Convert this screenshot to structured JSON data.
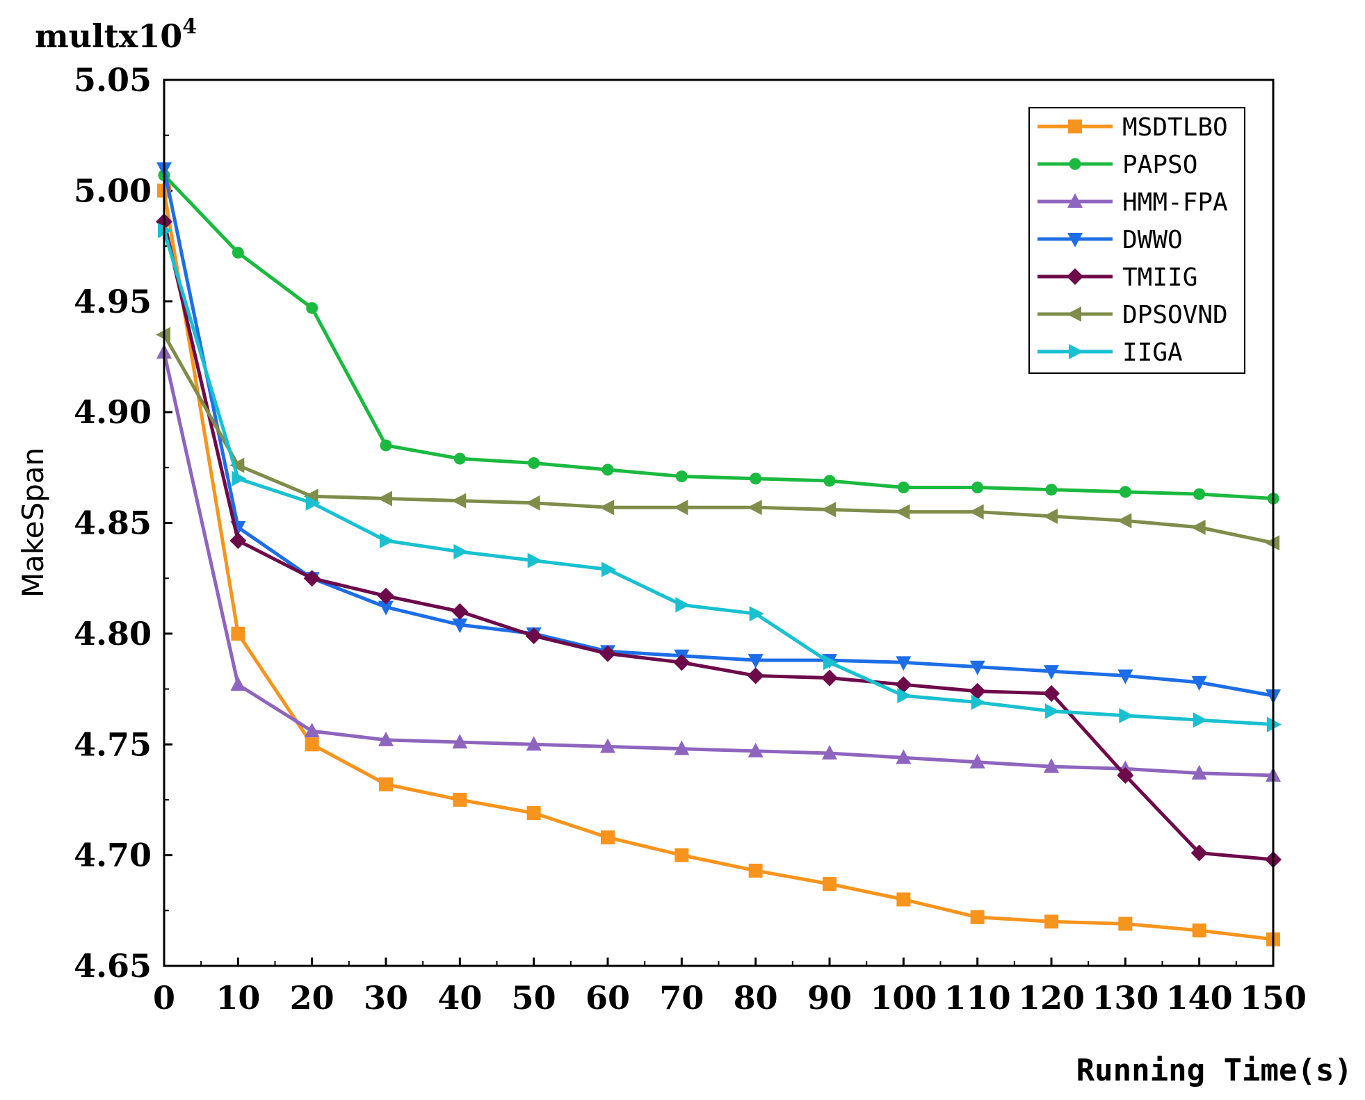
{
  "chart_data": {
    "type": "line",
    "title": "",
    "xlabel": "Running Time(s)",
    "ylabel": "MakeSpan",
    "multiplier_base": "multx10",
    "multiplier_exp": "4",
    "x": [
      0,
      10,
      20,
      30,
      40,
      50,
      60,
      70,
      80,
      90,
      100,
      110,
      120,
      130,
      140,
      150
    ],
    "x_ticks": [
      0,
      10,
      20,
      30,
      40,
      50,
      60,
      70,
      80,
      90,
      100,
      110,
      120,
      130,
      140,
      150
    ],
    "xlim": [
      0,
      150
    ],
    "ylim": [
      4.65,
      5.05
    ],
    "y_ticks": [
      4.65,
      4.7,
      4.75,
      4.8,
      4.85,
      4.9,
      4.95,
      5.0,
      5.05
    ],
    "y_tick_labels": [
      "4.65",
      "4.70",
      "4.75",
      "4.80",
      "4.85",
      "4.90",
      "4.95",
      "5.00",
      "5.05"
    ],
    "grid": false,
    "legend_position": "top-right",
    "series": [
      {
        "name": "MSDTLBO",
        "color": "#f7941d",
        "marker": "square",
        "values": [
          5.0,
          4.8,
          4.75,
          4.732,
          4.725,
          4.719,
          4.708,
          4.7,
          4.693,
          4.687,
          4.68,
          4.672,
          4.67,
          4.669,
          4.666,
          4.662
        ]
      },
      {
        "name": "PAPSO",
        "color": "#1ab93f",
        "marker": "circle",
        "values": [
          5.007,
          4.972,
          4.947,
          4.885,
          4.879,
          4.877,
          4.874,
          4.871,
          4.87,
          4.869,
          4.866,
          4.866,
          4.865,
          4.864,
          4.863,
          4.861
        ]
      },
      {
        "name": "HMM-FPA",
        "color": "#8e65be",
        "marker": "triangle-up",
        "values": [
          4.927,
          4.777,
          4.756,
          4.752,
          4.751,
          4.75,
          4.749,
          4.748,
          4.747,
          4.746,
          4.744,
          4.742,
          4.74,
          4.739,
          4.737,
          4.736
        ]
      },
      {
        "name": "DWWO",
        "color": "#1d6ee6",
        "marker": "triangle-down",
        "values": [
          5.01,
          4.848,
          4.825,
          4.812,
          4.804,
          4.8,
          4.792,
          4.79,
          4.788,
          4.788,
          4.787,
          4.785,
          4.783,
          4.781,
          4.778,
          4.772
        ]
      },
      {
        "name": "TMIIG",
        "color": "#6d0a4a",
        "marker": "diamond",
        "values": [
          4.986,
          4.842,
          4.825,
          4.817,
          4.81,
          4.799,
          4.791,
          4.787,
          4.781,
          4.78,
          4.777,
          4.774,
          4.773,
          4.736,
          4.701,
          4.698
        ]
      },
      {
        "name": "DPSOVND",
        "color": "#7f8c4a",
        "marker": "triangle-left",
        "values": [
          4.935,
          4.876,
          4.862,
          4.861,
          4.86,
          4.859,
          4.857,
          4.857,
          4.857,
          4.856,
          4.855,
          4.855,
          4.853,
          4.851,
          4.848,
          4.841
        ]
      },
      {
        "name": "IIGA",
        "color": "#19c0d0",
        "marker": "triangle-right",
        "values": [
          4.982,
          4.87,
          4.859,
          4.842,
          4.837,
          4.833,
          4.829,
          4.813,
          4.809,
          4.787,
          4.772,
          4.769,
          4.765,
          4.763,
          4.761,
          4.759
        ]
      }
    ]
  }
}
